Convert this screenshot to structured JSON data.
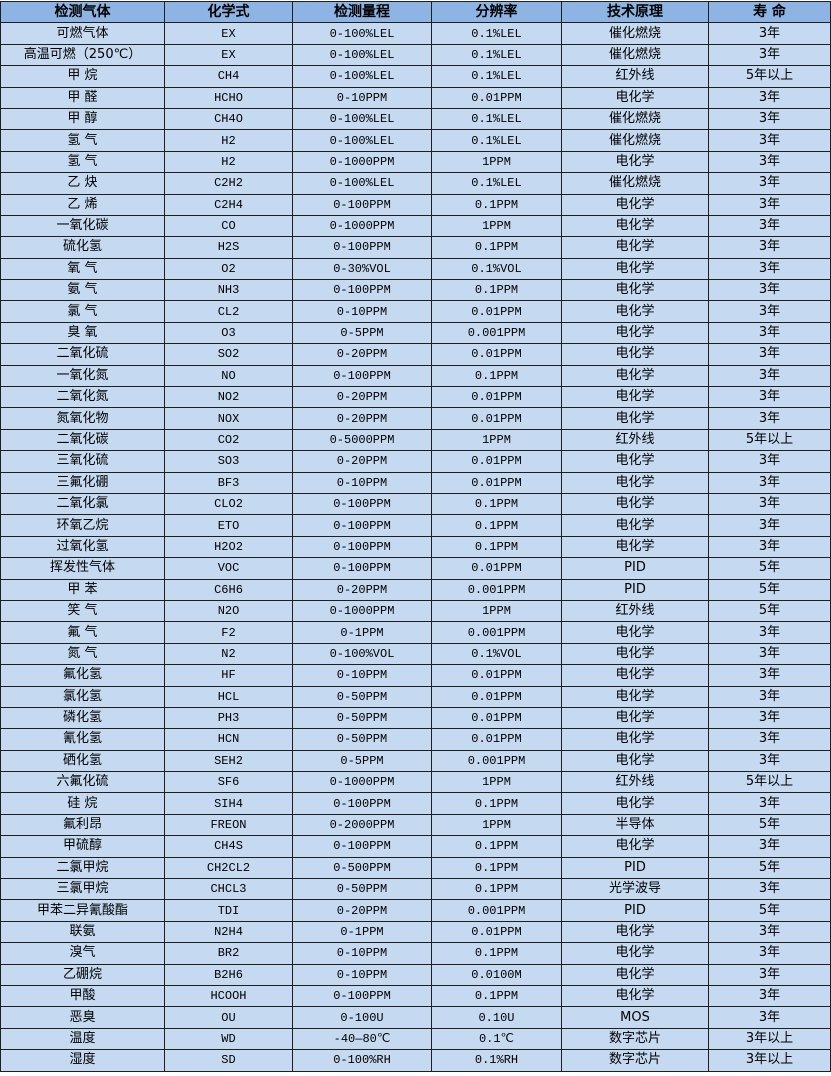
{
  "colors": {
    "header_bg": "#8db4e2",
    "row_bg": "#c5d9f1",
    "border": "#1f1f1f"
  },
  "table": {
    "headers": [
      "检测气体",
      "化学式",
      "检测量程",
      "分辨率",
      "技术原理",
      "寿 命"
    ],
    "rows": [
      [
        "可燃气体",
        "EX",
        "0-100%LEL",
        "0.1%LEL",
        "催化燃烧",
        "3年"
      ],
      [
        "高温可燃（250℃）",
        "EX",
        "0-100%LEL",
        "0.1%LEL",
        "催化燃烧",
        "3年"
      ],
      [
        "甲 烷",
        "CH4",
        "0-100%LEL",
        "0.1%LEL",
        "红外线",
        "5年以上"
      ],
      [
        "甲 醛",
        "HCHO",
        "0-10PPM",
        "0.01PPM",
        "电化学",
        "3年"
      ],
      [
        "甲 醇",
        "CH4O",
        "0-100%LEL",
        "0.1%LEL",
        "催化燃烧",
        "3年"
      ],
      [
        "氢 气",
        "H2",
        "0-100%LEL",
        "0.1%LEL",
        "催化燃烧",
        "3年"
      ],
      [
        "氢 气",
        "H2",
        "0-1000PPM",
        "1PPM",
        "电化学",
        "3年"
      ],
      [
        "乙 炔",
        "C2H2",
        "0-100%LEL",
        "0.1%LEL",
        "催化燃烧",
        "3年"
      ],
      [
        "乙 烯",
        "C2H4",
        "0-100PPM",
        "0.1PPM",
        "电化学",
        "3年"
      ],
      [
        "一氧化碳",
        "CO",
        "0-1000PPM",
        "1PPM",
        "电化学",
        "3年"
      ],
      [
        "硫化氢",
        "H2S",
        "0-100PPM",
        "0.1PPM",
        "电化学",
        "3年"
      ],
      [
        "氧 气",
        "O2",
        "0-30%VOL",
        "0.1%VOL",
        "电化学",
        "3年"
      ],
      [
        "氨 气",
        "NH3",
        "0-100PPM",
        "0.1PPM",
        "电化学",
        "3年"
      ],
      [
        "氯 气",
        "CL2",
        "0-10PPM",
        "0.01PPM",
        "电化学",
        "3年"
      ],
      [
        "臭 氧",
        "O3",
        "0-5PPM",
        "0.001PPM",
        "电化学",
        "3年"
      ],
      [
        "二氧化硫",
        "SO2",
        "0-20PPM",
        "0.01PPM",
        "电化学",
        "3年"
      ],
      [
        "一氧化氮",
        "NO",
        "0-100PPM",
        "0.1PPM",
        "电化学",
        "3年"
      ],
      [
        "二氧化氮",
        "NO2",
        "0-20PPM",
        "0.01PPM",
        "电化学",
        "3年"
      ],
      [
        "氮氧化物",
        "NOX",
        "0-20PPM",
        "0.01PPM",
        "电化学",
        "3年"
      ],
      [
        "二氧化碳",
        "CO2",
        "0-5000PPM",
        "1PPM",
        "红外线",
        "5年以上"
      ],
      [
        "三氧化硫",
        "SO3",
        "0-20PPM",
        "0.01PPM",
        "电化学",
        "3年"
      ],
      [
        "三氟化硼",
        "BF3",
        "0-10PPM",
        "0.01PPM",
        "电化学",
        "3年"
      ],
      [
        "二氧化氯",
        "CLO2",
        "0-100PPM",
        "0.1PPM",
        "电化学",
        "3年"
      ],
      [
        "环氧乙烷",
        "ETO",
        "0-100PPM",
        "0.1PPM",
        "电化学",
        "3年"
      ],
      [
        "过氧化氢",
        "H2O2",
        "0-100PPM",
        "0.1PPM",
        "电化学",
        "3年"
      ],
      [
        "挥发性气体",
        "VOC",
        "0-100PPM",
        "0.01PPM",
        "PID",
        "5年"
      ],
      [
        "甲 苯",
        "C6H6",
        "0-20PPM",
        "0.001PPM",
        "PID",
        "5年"
      ],
      [
        "笑 气",
        "N2O",
        "0-1000PPM",
        "1PPM",
        "红外线",
        "5年"
      ],
      [
        "氟 气",
        "F2",
        "0-1PPM",
        "0.001PPM",
        "电化学",
        "3年"
      ],
      [
        "氮 气",
        "N2",
        "0-100%VOL",
        "0.1%VOL",
        "电化学",
        "3年"
      ],
      [
        "氟化氢",
        "HF",
        "0-10PPM",
        "0.01PPM",
        "电化学",
        "3年"
      ],
      [
        "氯化氢",
        "HCL",
        "0-50PPM",
        "0.01PPM",
        "电化学",
        "3年"
      ],
      [
        "磷化氢",
        "PH3",
        "0-50PPM",
        "0.01PPM",
        "电化学",
        "3年"
      ],
      [
        "氰化氢",
        "HCN",
        "0-50PPM",
        "0.01PPM",
        "电化学",
        "3年"
      ],
      [
        "硒化氢",
        "SEH2",
        "0-5PPM",
        "0.001PPM",
        "电化学",
        "3年"
      ],
      [
        "六氟化硫",
        "SF6",
        "0-1000PPM",
        "1PPM",
        "红外线",
        "5年以上"
      ],
      [
        "硅 烷",
        "SIH4",
        "0-100PPM",
        "0.1PPM",
        "电化学",
        "3年"
      ],
      [
        "氟利昂",
        "FREON",
        "0-2000PPM",
        "1PPM",
        "半导体",
        "5年"
      ],
      [
        "甲硫醇",
        "CH4S",
        "0-100PPM",
        "0.1PPM",
        "电化学",
        "3年"
      ],
      [
        "二氯甲烷",
        "CH2CL2",
        "0-500PPM",
        "0.1PPM",
        "PID",
        "5年"
      ],
      [
        "三氯甲烷",
        "CHCL3",
        "0-50PPM",
        "0.1PPM",
        "光学波导",
        "3年"
      ],
      [
        "甲苯二异氰酸酯",
        "TDI",
        "0-20PPM",
        "0.001PPM",
        "PID",
        "5年"
      ],
      [
        "联氨",
        "N2H4",
        "0-1PPM",
        "0.01PPM",
        "电化学",
        "3年"
      ],
      [
        "溴气",
        "BR2",
        "0-10PPM",
        "0.1PPM",
        "电化学",
        "3年"
      ],
      [
        "乙硼烷",
        "B2H6",
        "0-10PPM",
        "0.0100M",
        "电化学",
        "3年"
      ],
      [
        "甲酸",
        "HCOOH",
        "0-100PPM",
        "0.1PPM",
        "电化学",
        "3年"
      ],
      [
        "恶臭",
        "OU",
        "0-100U",
        "0.10U",
        "MOS",
        "3年"
      ],
      [
        "温度",
        "WD",
        "-40—80℃",
        "0.1℃",
        "数字芯片",
        "3年以上"
      ],
      [
        "湿度",
        "SD",
        "0-100%RH",
        "0.1%RH",
        "数字芯片",
        "3年以上"
      ]
    ]
  }
}
